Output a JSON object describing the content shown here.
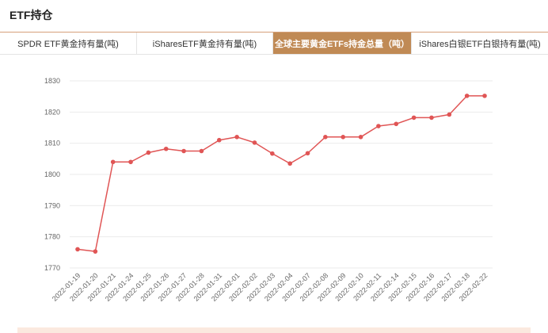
{
  "header": {
    "title": "ETF持仓"
  },
  "tabs": [
    {
      "label": "SPDR ETF黄金持有量(吨)",
      "active": false
    },
    {
      "label": "iSharesETF黄金持有量(吨)",
      "active": false
    },
    {
      "label": "全球主要黄金ETFs持金总量（吨）",
      "active": true
    },
    {
      "label": "iShares白银ETF白银持有量(吨)",
      "active": false
    }
  ],
  "colors": {
    "accent": "#c08a55",
    "line": "#e05555",
    "grid": "#ebebeb"
  },
  "chart_data": {
    "type": "line",
    "title": "",
    "xlabel": "",
    "ylabel": "",
    "ylim": [
      1770,
      1830
    ],
    "yticks": [
      1770,
      1780,
      1790,
      1800,
      1810,
      1820,
      1830
    ],
    "grid": true,
    "x": [
      "2022-01-19",
      "2022-01-20",
      "2022-01-21",
      "2022-01-24",
      "2022-01-25",
      "2022-01-26",
      "2022-01-27",
      "2022-01-28",
      "2022-01-31",
      "2022-02-01",
      "2022-02-02",
      "2022-02-03",
      "2022-02-04",
      "2022-02-07",
      "2022-02-08",
      "2022-02-09",
      "2022-02-10",
      "2022-02-11",
      "2022-02-14",
      "2022-02-15",
      "2022-02-16",
      "2022-02-17",
      "2022-02-18",
      "2022-02-22"
    ],
    "series": [
      {
        "values": [
          1776,
          1775.3,
          1804,
          1804,
          1807,
          1808.2,
          1807.5,
          1807.5,
          1811,
          1812,
          1810.2,
          1806.7,
          1803.5,
          1806.8,
          1812,
          1812,
          1812,
          1815.5,
          1816.2,
          1818.2,
          1818.2,
          1819.2,
          1825.2,
          1825.2
        ]
      }
    ]
  }
}
